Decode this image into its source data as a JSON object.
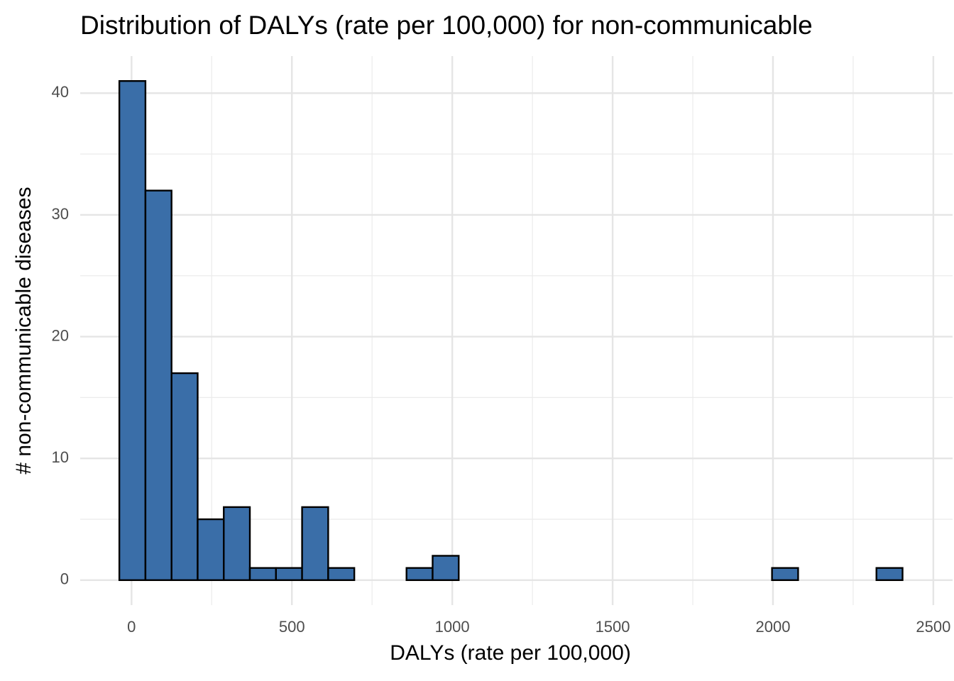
{
  "chart_data": {
    "type": "histogram",
    "title": "Distribution of DALYs (rate per 100,000) for non-communicable",
    "x_label": "DALYs (rate per 100,000)",
    "y_label": "# non-communicable diseases",
    "bins": [
      -38,
      43.4,
      124.8,
      206.2,
      287.6,
      369,
      450.4,
      531.8,
      613.2,
      694.6,
      776,
      857.4,
      938.8,
      1020.2,
      1101.6,
      1183,
      1264.4,
      1345.8,
      1427.2,
      1508.6,
      1590,
      1671.4,
      1752.8,
      1834.2,
      1915.6,
      1997,
      2078.4,
      2159.8,
      2241.2,
      2322.6,
      2404
    ],
    "values": [
      41,
      32,
      17,
      5,
      6,
      1,
      1,
      6,
      1,
      0,
      0,
      1,
      2,
      0,
      0,
      0,
      0,
      0,
      0,
      0,
      0,
      0,
      0,
      0,
      0,
      1,
      0,
      0,
      0,
      1
    ],
    "color": "#3a6ea8",
    "xlim": [
      -160,
      2560
    ],
    "ylim": [
      -2.05,
      43.05
    ],
    "xticks": [
      0,
      500,
      1000,
      1500,
      2000,
      2500
    ],
    "yticks": [
      0,
      10,
      20,
      30,
      40
    ],
    "xminorticks": [
      250,
      750,
      1250,
      1750,
      2250
    ],
    "yminorticks": [
      5,
      15,
      25,
      35
    ],
    "grid": true
  }
}
